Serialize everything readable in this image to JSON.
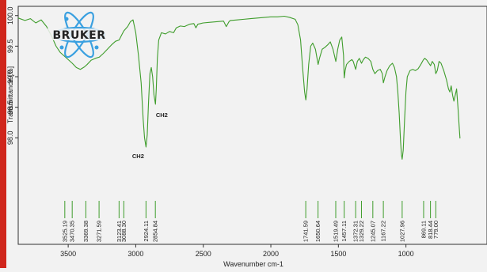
{
  "chart_data": {
    "type": "line",
    "title": "",
    "xlabel": "Wavenumber cm-1",
    "ylabel": "Transmittance [%]",
    "xlim": [
      3870,
      400
    ],
    "ylim": [
      97.15,
      100.1
    ],
    "x_reversed": true,
    "grid": false,
    "legend": "none",
    "x_ticks": [
      3500,
      3000,
      2500,
      2000,
      1500,
      1000
    ],
    "y_ticks": [
      "98.0",
      "98.5",
      "99.0",
      "99.5",
      "100.0"
    ],
    "y_tick_values": [
      98.0,
      98.5,
      99.0,
      99.5,
      100.0
    ],
    "series": [
      {
        "color": "#3f9d2c",
        "points": [
          [
            3870,
            99.96
          ],
          [
            3820,
            99.92
          ],
          [
            3780,
            99.95
          ],
          [
            3740,
            99.88
          ],
          [
            3700,
            99.93
          ],
          [
            3660,
            99.82
          ],
          [
            3620,
            99.65
          ],
          [
            3590,
            99.5
          ],
          [
            3560,
            99.4
          ],
          [
            3525,
            99.33
          ],
          [
            3500,
            99.28
          ],
          [
            3470,
            99.22
          ],
          [
            3440,
            99.15
          ],
          [
            3410,
            99.12
          ],
          [
            3380,
            99.16
          ],
          [
            3360,
            99.2
          ],
          [
            3330,
            99.27
          ],
          [
            3300,
            99.3
          ],
          [
            3270,
            99.32
          ],
          [
            3240,
            99.38
          ],
          [
            3210,
            99.45
          ],
          [
            3180,
            99.52
          ],
          [
            3150,
            99.58
          ],
          [
            3123,
            99.6
          ],
          [
            3100,
            99.7
          ],
          [
            3088,
            99.75
          ],
          [
            3060,
            99.82
          ],
          [
            3040,
            99.9
          ],
          [
            3020,
            99.93
          ],
          [
            3000,
            99.72
          ],
          [
            2980,
            99.35
          ],
          [
            2960,
            98.9
          ],
          [
            2945,
            98.3
          ],
          [
            2935,
            98.0
          ],
          [
            2924,
            97.85
          ],
          [
            2915,
            98.05
          ],
          [
            2905,
            98.6
          ],
          [
            2895,
            99.05
          ],
          [
            2885,
            99.15
          ],
          [
            2875,
            99.0
          ],
          [
            2865,
            98.7
          ],
          [
            2854,
            98.55
          ],
          [
            2848,
            98.8
          ],
          [
            2840,
            99.3
          ],
          [
            2830,
            99.6
          ],
          [
            2810,
            99.72
          ],
          [
            2780,
            99.7
          ],
          [
            2750,
            99.74
          ],
          [
            2720,
            99.72
          ],
          [
            2700,
            99.8
          ],
          [
            2670,
            99.83
          ],
          [
            2640,
            99.82
          ],
          [
            2600,
            99.86
          ],
          [
            2570,
            99.87
          ],
          [
            2555,
            99.8
          ],
          [
            2540,
            99.86
          ],
          [
            2500,
            99.88
          ],
          [
            2450,
            99.89
          ],
          [
            2400,
            99.9
          ],
          [
            2350,
            99.91
          ],
          [
            2330,
            99.82
          ],
          [
            2310,
            99.9
          ],
          [
            2300,
            99.92
          ],
          [
            2250,
            99.93
          ],
          [
            2200,
            99.94
          ],
          [
            2150,
            99.95
          ],
          [
            2100,
            99.96
          ],
          [
            2050,
            99.97
          ],
          [
            2000,
            99.98
          ],
          [
            1950,
            99.98
          ],
          [
            1900,
            99.99
          ],
          [
            1860,
            99.97
          ],
          [
            1820,
            99.94
          ],
          [
            1800,
            99.85
          ],
          [
            1780,
            99.6
          ],
          [
            1765,
            99.15
          ],
          [
            1750,
            98.75
          ],
          [
            1741,
            98.62
          ],
          [
            1732,
            98.8
          ],
          [
            1720,
            99.2
          ],
          [
            1705,
            99.5
          ],
          [
            1690,
            99.55
          ],
          [
            1670,
            99.45
          ],
          [
            1650,
            99.2
          ],
          [
            1640,
            99.3
          ],
          [
            1620,
            99.45
          ],
          [
            1600,
            99.48
          ],
          [
            1580,
            99.52
          ],
          [
            1560,
            99.57
          ],
          [
            1540,
            99.45
          ],
          [
            1519,
            99.25
          ],
          [
            1505,
            99.45
          ],
          [
            1490,
            99.6
          ],
          [
            1475,
            99.65
          ],
          [
            1462,
            99.35
          ],
          [
            1457,
            98.98
          ],
          [
            1450,
            99.1
          ],
          [
            1440,
            99.2
          ],
          [
            1420,
            99.25
          ],
          [
            1400,
            99.28
          ],
          [
            1390,
            99.25
          ],
          [
            1372,
            99.12
          ],
          [
            1360,
            99.25
          ],
          [
            1345,
            99.3
          ],
          [
            1329,
            99.22
          ],
          [
            1315,
            99.28
          ],
          [
            1300,
            99.32
          ],
          [
            1280,
            99.3
          ],
          [
            1260,
            99.25
          ],
          [
            1245,
            99.12
          ],
          [
            1230,
            99.05
          ],
          [
            1210,
            99.1
          ],
          [
            1190,
            99.12
          ],
          [
            1175,
            99.05
          ],
          [
            1167,
            98.9
          ],
          [
            1155,
            99.0
          ],
          [
            1140,
            99.1
          ],
          [
            1120,
            99.18
          ],
          [
            1100,
            99.22
          ],
          [
            1085,
            99.15
          ],
          [
            1070,
            99.0
          ],
          [
            1060,
            98.75
          ],
          [
            1050,
            98.4
          ],
          [
            1040,
            97.95
          ],
          [
            1033,
            97.72
          ],
          [
            1028,
            97.65
          ],
          [
            1020,
            97.8
          ],
          [
            1010,
            98.3
          ],
          [
            1000,
            98.75
          ],
          [
            990,
            99.0
          ],
          [
            970,
            99.1
          ],
          [
            950,
            99.12
          ],
          [
            930,
            99.1
          ],
          [
            910,
            99.13
          ],
          [
            890,
            99.2
          ],
          [
            870,
            99.28
          ],
          [
            860,
            99.3
          ],
          [
            845,
            99.27
          ],
          [
            830,
            99.22
          ],
          [
            818,
            99.18
          ],
          [
            805,
            99.25
          ],
          [
            790,
            99.2
          ],
          [
            779,
            99.05
          ],
          [
            768,
            99.1
          ],
          [
            755,
            99.25
          ],
          [
            740,
            99.22
          ],
          [
            720,
            99.1
          ],
          [
            700,
            98.95
          ],
          [
            685,
            98.8
          ],
          [
            675,
            98.75
          ],
          [
            665,
            98.85
          ],
          [
            655,
            98.7
          ],
          [
            645,
            98.6
          ],
          [
            635,
            98.7
          ],
          [
            625,
            98.8
          ],
          [
            615,
            98.5
          ],
          [
            605,
            98.15
          ],
          [
            600,
            97.99
          ]
        ]
      }
    ],
    "peaks": [
      "3525.19",
      "3470.35",
      "3369.38",
      "3271.59",
      "3123.41",
      "3088.30",
      "2924.11",
      "2854.84",
      "1741.59",
      "1650.64",
      "1519.49",
      "1457.11",
      "1372.31",
      "1329.22",
      "1245.07",
      "1167.22",
      "1027.96",
      "869.11",
      "818.44",
      "779.00"
    ],
    "annotations": [
      {
        "text": "CH2",
        "x": 2924,
        "y": 97.85
      },
      {
        "text": "CH2",
        "x": 2854,
        "y": 98.55
      }
    ]
  },
  "logo": {
    "text": "BRUKER",
    "ring_color": "#3aa0e0",
    "text_color": "#111111"
  },
  "colors": {
    "accent_bar": "#d0261c",
    "line": "#3f9d2c",
    "background": "#f2f2f2"
  }
}
